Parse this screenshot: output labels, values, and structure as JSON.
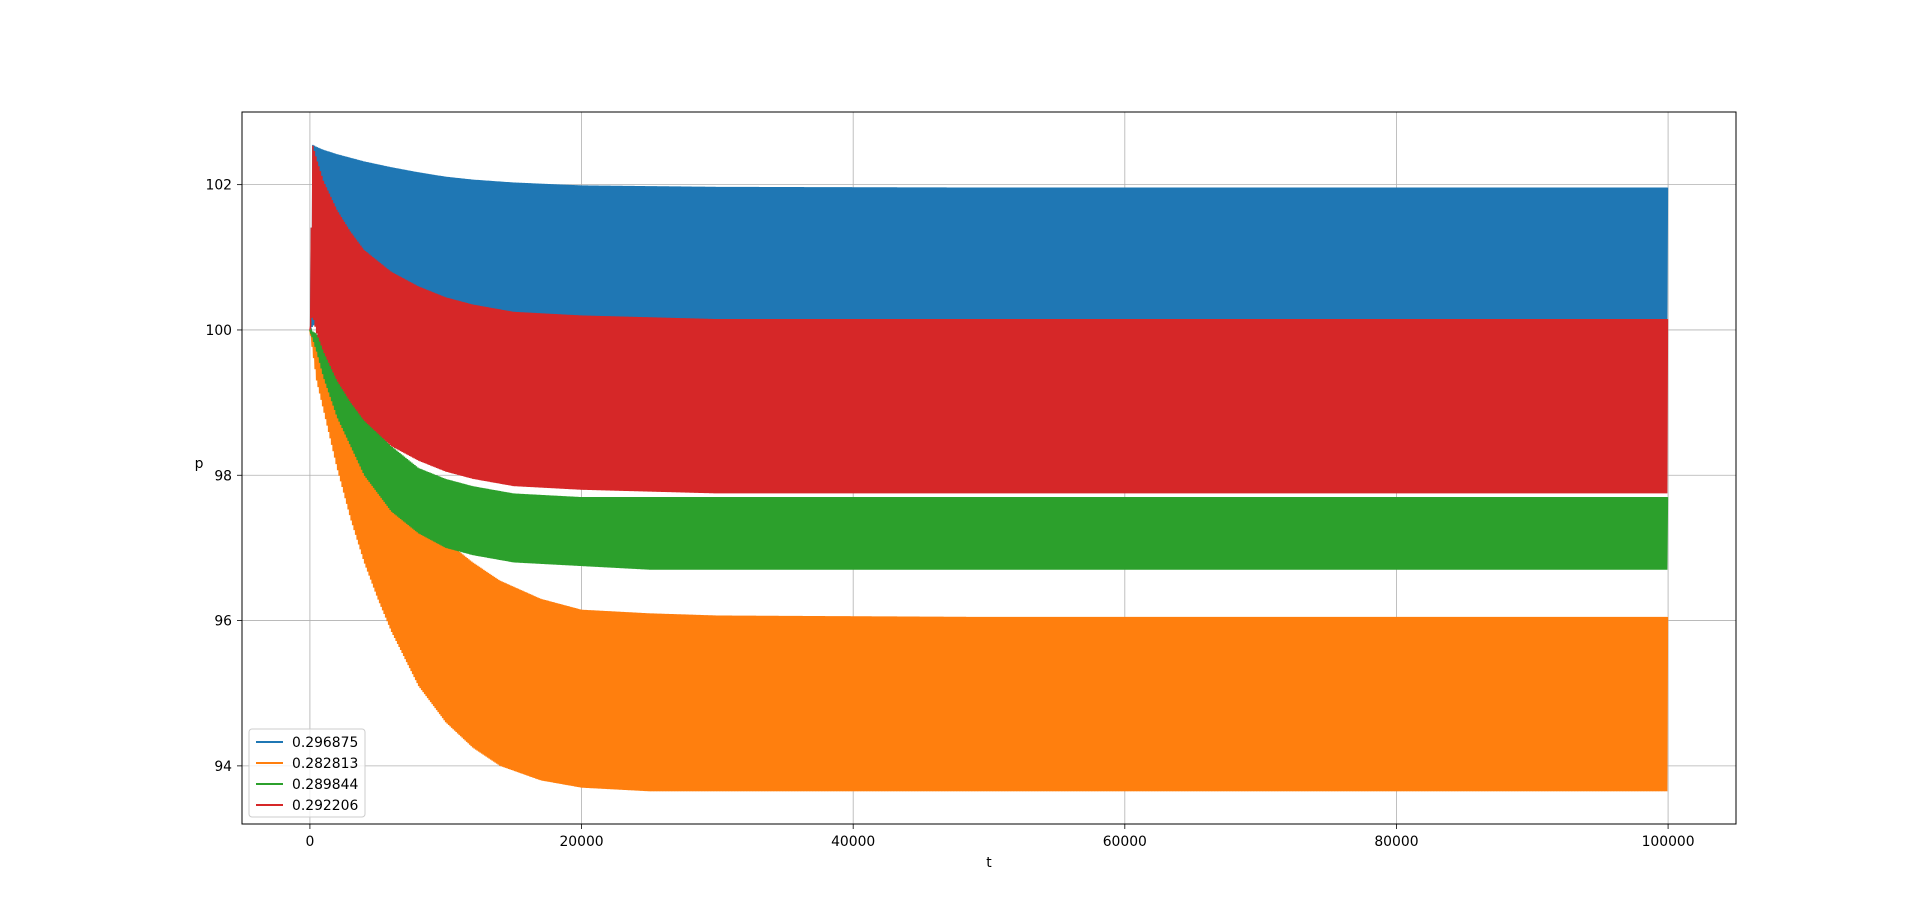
{
  "chart_data": {
    "type": "line",
    "title": "",
    "xlabel": "t",
    "ylabel": "p",
    "xlim": [
      -5000,
      105000
    ],
    "ylim": [
      93.2,
      103.0
    ],
    "xticks": [
      0,
      20000,
      40000,
      60000,
      80000,
      100000
    ],
    "xtick_labels": [
      "0",
      "20000",
      "40000",
      "60000",
      "80000",
      "100000"
    ],
    "yticks": [
      94,
      96,
      98,
      100,
      102
    ],
    "ytick_labels": [
      "94",
      "96",
      "98",
      "100",
      "102"
    ],
    "grid": true,
    "legend_position": "lower-left",
    "series": [
      {
        "name": "0.296875",
        "color": "#1f77b4",
        "t": [
          0,
          200,
          500,
          1000,
          2000,
          4000,
          6000,
          8000,
          10000,
          12000,
          15000,
          20000,
          30000,
          50000,
          100000
        ],
        "upper": [
          100.0,
          102.55,
          102.52,
          102.48,
          102.42,
          102.32,
          102.24,
          102.17,
          102.11,
          102.07,
          102.03,
          101.99,
          101.97,
          101.96,
          101.96
        ],
        "lower": [
          100.0,
          100.05,
          100.1,
          100.12,
          100.13,
          100.13,
          100.13,
          100.13,
          100.13,
          100.13,
          100.13,
          100.13,
          100.13,
          100.13,
          100.13
        ]
      },
      {
        "name": "0.282813",
        "color": "#ff7f0e",
        "t": [
          0,
          500,
          1000,
          2000,
          3000,
          4000,
          5000,
          6000,
          8000,
          10000,
          12000,
          14000,
          17000,
          20000,
          25000,
          30000,
          50000,
          100000
        ],
        "upper": [
          100.0,
          99.8,
          99.6,
          99.2,
          98.8,
          98.45,
          98.15,
          97.9,
          97.45,
          97.1,
          96.8,
          96.55,
          96.3,
          96.15,
          96.1,
          96.07,
          96.05,
          96.05
        ],
        "lower": [
          100.0,
          99.3,
          98.9,
          98.1,
          97.4,
          96.8,
          96.3,
          95.85,
          95.1,
          94.6,
          94.25,
          94.0,
          93.8,
          93.7,
          93.65,
          93.65,
          93.65,
          93.65
        ]
      },
      {
        "name": "0.289844",
        "color": "#2ca02c",
        "t": [
          0,
          500,
          1000,
          2000,
          4000,
          6000,
          8000,
          10000,
          12000,
          15000,
          20000,
          25000,
          30000,
          50000,
          100000
        ],
        "upper": [
          100.0,
          99.95,
          99.8,
          99.4,
          98.8,
          98.4,
          98.1,
          97.95,
          97.85,
          97.75,
          97.7,
          97.7,
          97.7,
          97.7,
          97.7
        ],
        "lower": [
          100.0,
          99.7,
          99.35,
          98.8,
          98.0,
          97.5,
          97.2,
          97.0,
          96.9,
          96.8,
          96.75,
          96.7,
          96.7,
          96.7,
          96.7
        ]
      },
      {
        "name": "0.292206",
        "color": "#d62728",
        "t": [
          0,
          200,
          500,
          1000,
          2000,
          3000,
          4000,
          6000,
          8000,
          10000,
          12000,
          15000,
          20000,
          30000,
          50000,
          100000
        ],
        "upper": [
          100.0,
          102.55,
          102.35,
          102.05,
          101.65,
          101.35,
          101.1,
          100.8,
          100.6,
          100.45,
          100.35,
          100.25,
          100.2,
          100.15,
          100.15,
          100.15
        ],
        "lower": [
          100.0,
          100.2,
          99.95,
          99.7,
          99.3,
          99.0,
          98.75,
          98.4,
          98.2,
          98.05,
          97.95,
          97.85,
          97.8,
          97.75,
          97.75,
          97.75
        ]
      }
    ]
  }
}
